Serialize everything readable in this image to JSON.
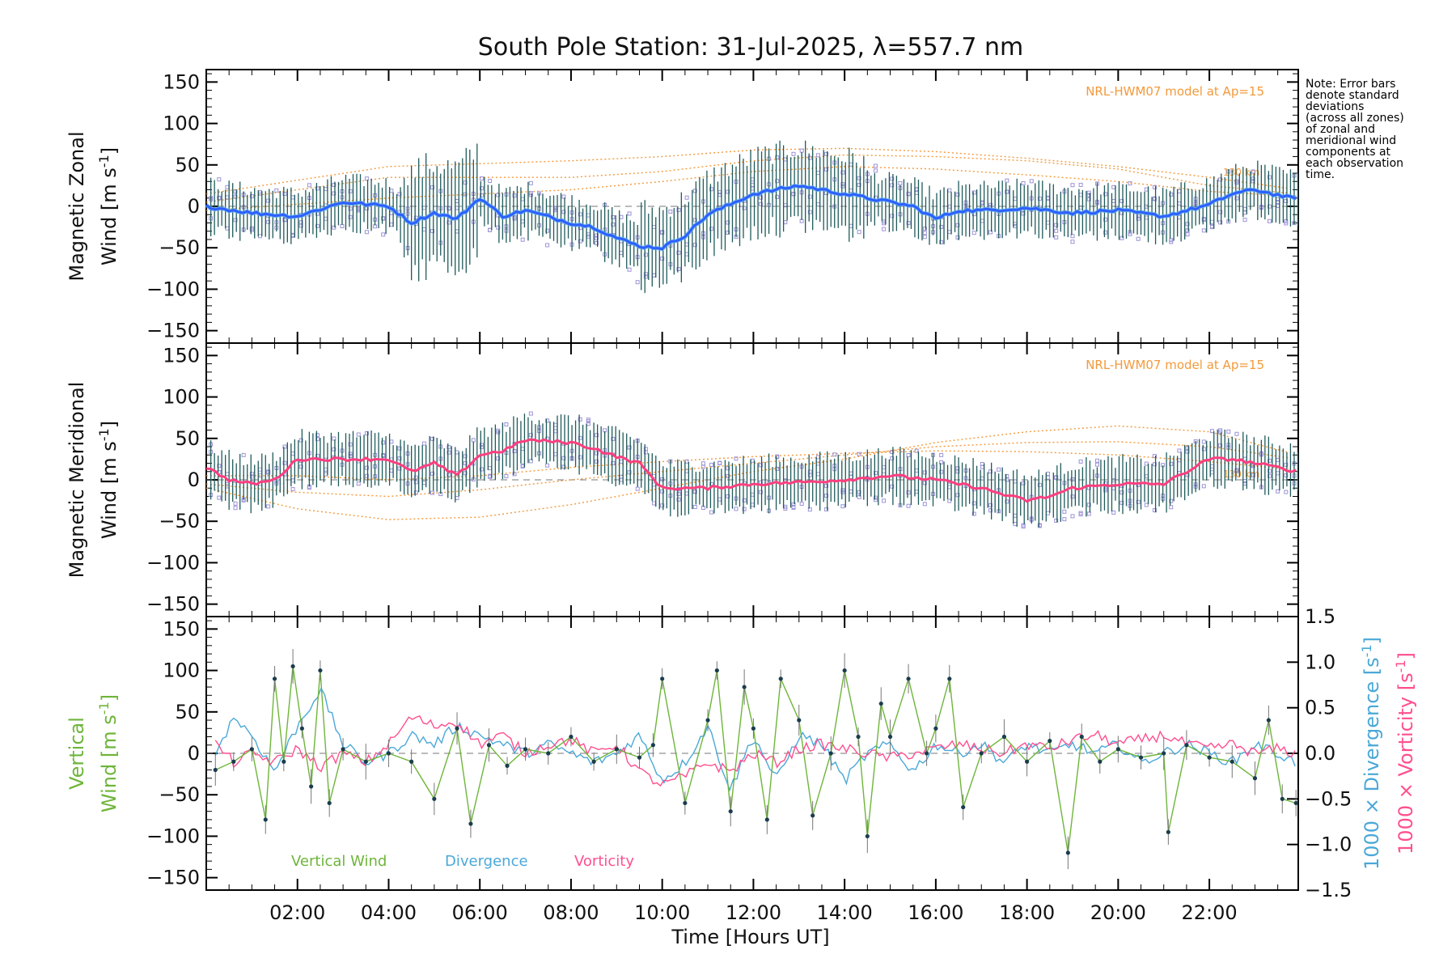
{
  "title": "South Pole Station: 31-Jul-2025, λ=557.7 nm",
  "note": "Note: Error bars\ndenote standard\ndeviations\n(across all zones)\nof zonal and\nmeridional wind\ncomponents at\neach observation\ntime.",
  "colors": {
    "zonal": "#2f5fff",
    "zonal_light": "#5ab0ee",
    "meridional": "#ff3f7f",
    "vertical": "#6eb53a",
    "divergence": "#4aa8d8",
    "vorticity": "#ff4f8f",
    "model": "#f39a3c",
    "scatter": "#9c93d8",
    "errorbar": "#1f5a5a"
  },
  "chart_data": [
    {
      "type": "line",
      "panel": "zonal",
      "ylabel": "Magnetic Zonal Wind [m s-1]",
      "ylabel_parts": [
        "Magnetic Zonal",
        "Wind [m s",
        "-1",
        "]"
      ],
      "ylim": [
        -165,
        165
      ],
      "xlim": [
        0.0,
        23.95
      ],
      "yticks": [
        -150,
        -100,
        -50,
        0,
        50,
        100,
        150
      ],
      "model_label": "NRL-HWM07 model at Ap=15",
      "model_tag": "130 km",
      "series": [
        {
          "name": "Magnetic Zonal Wind",
          "x": [
            0,
            1,
            2,
            3,
            4,
            4.5,
            5,
            5.5,
            6,
            6.5,
            7,
            8,
            8.5,
            9,
            9.5,
            10,
            10.5,
            11,
            12,
            13,
            14,
            14.5,
            15,
            15.5,
            16,
            16.5,
            17,
            18,
            19,
            20,
            21,
            22,
            22.5,
            23,
            23.95
          ],
          "values": [
            0,
            -8,
            -12,
            5,
            0,
            -20,
            -8,
            -15,
            10,
            -12,
            -5,
            -20,
            -25,
            -38,
            -48,
            -50,
            -35,
            -10,
            15,
            25,
            15,
            10,
            5,
            0,
            -15,
            -5,
            -5,
            -2,
            -8,
            -5,
            -12,
            2,
            15,
            20,
            8
          ]
        }
      ],
      "model_series": [
        {
          "name": "model-1",
          "x": [
            0,
            4,
            8,
            10,
            12,
            14,
            16,
            18,
            20,
            22,
            23.95
          ],
          "values": [
            5,
            35,
            35,
            42,
            55,
            62,
            60,
            55,
            45,
            25,
            15
          ]
        },
        {
          "name": "model-2",
          "x": [
            0,
            4,
            8,
            10,
            12,
            14,
            16,
            18,
            20,
            22,
            23.95
          ],
          "values": [
            -5,
            10,
            20,
            30,
            42,
            48,
            45,
            38,
            30,
            18,
            12
          ]
        },
        {
          "name": "model-3",
          "x": [
            0,
            4,
            8,
            10,
            12,
            14,
            16,
            18,
            20,
            22,
            23.95
          ],
          "values": [
            15,
            48,
            55,
            60,
            68,
            70,
            66,
            58,
            48,
            35,
            20
          ]
        }
      ]
    },
    {
      "type": "line",
      "panel": "meridional",
      "ylabel": "Magnetic Meridional Wind [m s-1]",
      "ylabel_parts": [
        "Magnetic Meridional",
        "Wind [m s",
        "-1",
        "]"
      ],
      "ylim": [
        -165,
        165
      ],
      "xlim": [
        0.0,
        23.95
      ],
      "yticks": [
        -150,
        -100,
        -50,
        0,
        50,
        100,
        150
      ],
      "model_label": "NRL-HWM07 model at Ap=15",
      "model_tag": "130 km",
      "series": [
        {
          "name": "Magnetic Meridional Wind",
          "x": [
            0,
            0.5,
            1,
            1.5,
            2,
            2.5,
            3,
            4,
            4.5,
            5,
            5.5,
            6,
            6.5,
            7,
            8,
            8.5,
            9,
            9.5,
            10,
            11,
            12,
            13,
            14,
            15,
            16,
            17,
            17.5,
            18,
            18.5,
            19,
            20,
            21,
            22,
            22.5,
            23,
            23.95
          ],
          "values": [
            15,
            0,
            -5,
            0,
            25,
            25,
            25,
            25,
            10,
            20,
            5,
            30,
            35,
            48,
            45,
            38,
            28,
            20,
            -10,
            -10,
            -5,
            -3,
            0,
            5,
            0,
            -10,
            -18,
            -25,
            -20,
            -10,
            -5,
            -5,
            25,
            25,
            20,
            10
          ]
        }
      ],
      "model_series": [
        {
          "name": "model-1",
          "x": [
            0,
            2,
            4,
            6,
            8,
            10,
            12,
            14,
            16,
            18,
            20,
            22,
            23.95
          ],
          "values": [
            -10,
            -35,
            -48,
            -45,
            -30,
            -10,
            10,
            25,
            45,
            58,
            65,
            58,
            30
          ]
        },
        {
          "name": "model-2",
          "x": [
            0,
            2,
            4,
            6,
            8,
            10,
            12,
            14,
            16,
            18,
            20,
            22,
            23.95
          ],
          "values": [
            -5,
            -15,
            -20,
            -12,
            0,
            10,
            20,
            30,
            40,
            45,
            46,
            40,
            25
          ]
        },
        {
          "name": "model-3",
          "x": [
            0,
            2,
            4,
            6,
            8,
            10,
            12,
            14,
            16,
            18,
            20,
            22,
            23.95
          ],
          "values": [
            5,
            5,
            0,
            5,
            15,
            22,
            28,
            32,
            35,
            34,
            30,
            22,
            12
          ]
        }
      ]
    },
    {
      "type": "line",
      "panel": "vertical",
      "ylabel": "Vertical Wind [m s-1]",
      "ylabel_parts": [
        "Vertical",
        "Wind [m s",
        "-1",
        "]"
      ],
      "ylim": [
        -165,
        165
      ],
      "xlim": [
        0.0,
        23.95
      ],
      "yticks": [
        -150,
        -100,
        -50,
        0,
        50,
        100,
        150
      ],
      "xlabel": "Time [Hours UT]",
      "xtick_labels": [
        "02:00",
        "04:00",
        "06:00",
        "08:00",
        "10:00",
        "12:00",
        "14:00",
        "16:00",
        "18:00",
        "20:00",
        "22:00"
      ],
      "xtick_values": [
        2,
        4,
        6,
        8,
        10,
        12,
        14,
        16,
        18,
        20,
        22
      ],
      "y2label_div": "1000 × Divergence [s-1]",
      "y2label_div_parts": [
        "1000 × Divergence [s",
        "-1",
        "]"
      ],
      "y2label_vor": "1000 × Vorticity [s-1]",
      "y2label_vor_parts": [
        "1000 × Vorticity [s",
        "-1",
        "]"
      ],
      "y2lim": [
        -1.5,
        1.5
      ],
      "y2ticks": [
        -1.5,
        -1.0,
        -0.5,
        0.0,
        0.5,
        1.0,
        1.5
      ],
      "y2tick_labels": [
        "−1.5",
        "−1.0",
        "−0.5",
        "0.0",
        "0.5",
        "1.0",
        "1.5"
      ],
      "legend": [
        "Vertical Wind",
        "Divergence",
        "Vorticity"
      ],
      "series": [
        {
          "name": "Vertical Wind",
          "x": [
            0.2,
            0.6,
            1.0,
            1.3,
            1.5,
            1.7,
            1.9,
            2.1,
            2.3,
            2.5,
            2.7,
            3.0,
            3.5,
            4.0,
            4.5,
            5.0,
            5.5,
            5.8,
            6.2,
            6.6,
            7.0,
            7.5,
            8.0,
            8.5,
            9.0,
            9.5,
            9.8,
            10.0,
            10.5,
            11.0,
            11.2,
            11.5,
            11.8,
            12.0,
            12.3,
            12.6,
            13.0,
            13.3,
            13.7,
            14.0,
            14.3,
            14.5,
            14.8,
            15.0,
            15.4,
            15.8,
            16.0,
            16.3,
            16.6,
            17.0,
            17.5,
            18.0,
            18.5,
            18.9,
            19.2,
            19.6,
            20.0,
            20.5,
            21.0,
            21.1,
            21.5,
            22.0,
            22.5,
            23.0,
            23.3,
            23.6,
            23.9
          ],
          "values": [
            -20,
            -10,
            5,
            -80,
            90,
            -10,
            105,
            30,
            -40,
            100,
            -60,
            5,
            -10,
            0,
            -10,
            -55,
            30,
            -85,
            10,
            -15,
            5,
            0,
            20,
            -10,
            5,
            -5,
            10,
            90,
            -60,
            40,
            100,
            -70,
            80,
            30,
            -80,
            90,
            40,
            -75,
            0,
            100,
            20,
            -100,
            60,
            20,
            90,
            0,
            30,
            90,
            -65,
            0,
            20,
            -10,
            15,
            -120,
            20,
            -10,
            5,
            -5,
            0,
            -95,
            10,
            -5,
            -10,
            -30,
            40,
            -55,
            -60
          ]
        },
        {
          "name": "Divergence",
          "axis": "y2",
          "x": [
            0.2,
            0.6,
            1.0,
            1.5,
            2.0,
            2.5,
            3.0,
            3.5,
            4.0,
            4.5,
            5.0,
            5.5,
            6.0,
            6.5,
            7.0,
            7.5,
            8.0,
            8.5,
            9.0,
            9.5,
            10.0,
            10.5,
            11.0,
            11.5,
            12.0,
            12.5,
            13.0,
            13.5,
            14.0,
            14.5,
            15.0,
            15.5,
            16.0,
            16.5,
            17.0,
            17.5,
            18.0,
            18.5,
            19.0,
            19.5,
            20.0,
            20.5,
            21.0,
            21.5,
            22.0,
            22.5,
            23.0,
            23.5,
            23.9
          ],
          "values": [
            0.0,
            0.4,
            0.2,
            -0.2,
            0.3,
            0.7,
            0.1,
            -0.1,
            0.0,
            0.2,
            0.1,
            0.3,
            0.2,
            0.1,
            0.0,
            0.1,
            0.0,
            -0.1,
            0.0,
            0.2,
            -0.3,
            -0.1,
            0.3,
            -0.4,
            0.2,
            -0.3,
            0.2,
            0.1,
            -0.3,
            0.0,
            0.1,
            -0.2,
            0.1,
            0.0,
            0.1,
            -0.1,
            0.1,
            0.0,
            0.1,
            0.0,
            0.1,
            -0.1,
            0.0,
            0.1,
            0.0,
            -0.1,
            0.1,
            0.0,
            -0.1
          ]
        },
        {
          "name": "Vorticity",
          "axis": "y2",
          "x": [
            0.2,
            0.6,
            1.0,
            1.5,
            2.0,
            2.5,
            3.0,
            3.5,
            4.0,
            4.5,
            5.0,
            5.5,
            6.0,
            6.5,
            7.0,
            7.5,
            8.0,
            8.5,
            9.0,
            9.5,
            10.0,
            10.5,
            11.0,
            11.5,
            12.0,
            12.5,
            13.0,
            13.5,
            14.0,
            14.5,
            15.0,
            15.5,
            16.0,
            16.5,
            17.0,
            17.5,
            18.0,
            18.5,
            19.0,
            19.5,
            20.0,
            20.5,
            21.0,
            21.5,
            22.0,
            22.5,
            23.0,
            23.5,
            23.9
          ],
          "values": [
            0.1,
            -0.1,
            0.0,
            -0.1,
            0.05,
            -0.15,
            0.0,
            -0.1,
            0.1,
            0.4,
            0.3,
            0.35,
            0.1,
            0.2,
            0.0,
            0.1,
            0.15,
            0.0,
            0.1,
            -0.2,
            -0.35,
            -0.25,
            -0.1,
            -0.2,
            0.0,
            -0.1,
            0.05,
            0.1,
            0.05,
            0.0,
            -0.05,
            0.0,
            0.05,
            0.1,
            0.05,
            0.0,
            0.1,
            0.05,
            0.15,
            0.2,
            0.1,
            0.15,
            0.2,
            0.1,
            0.05,
            0.1,
            0.0,
            0.05,
            0.0
          ]
        }
      ]
    }
  ]
}
